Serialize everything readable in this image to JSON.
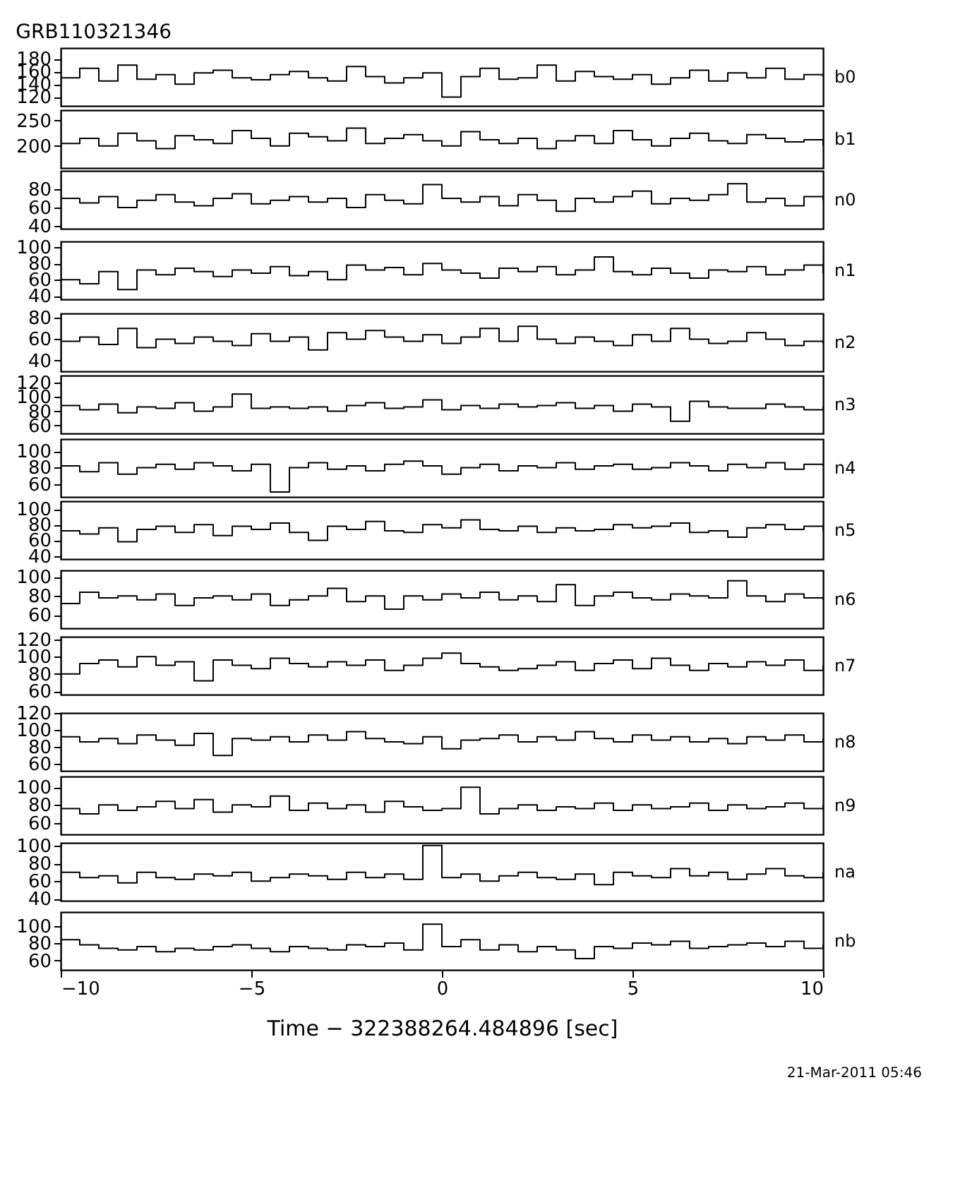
{
  "chart_data": [
    {
      "type": "step",
      "title": "GRB110321346",
      "x": [
        -10,
        -9.5,
        -9,
        -8.5,
        -8,
        -7.5,
        -7,
        -6.5,
        -6,
        -5.5,
        -5,
        -4.5,
        -4,
        -3.5,
        -3,
        -2.5,
        -2,
        -1.5,
        -1,
        -0.5,
        0,
        0.5,
        1,
        1.5,
        2,
        2.5,
        3,
        3.5,
        4,
        4.5,
        5,
        5.5,
        6,
        6.5,
        7,
        7.5,
        8,
        8.5,
        9,
        9.5,
        10
      ],
      "xlim": [
        -10,
        10
      ],
      "xticks": [
        -10,
        -5,
        0,
        5,
        10
      ],
      "ylim": [
        106,
        197
      ],
      "yticks": [
        120,
        140,
        160,
        180
      ],
      "tick_labels": "y",
      "grid": false,
      "line_style": "solid",
      "series": [
        {
          "name": "b0",
          "color": "#000000",
          "values": [
            150,
            165,
            145,
            170,
            148,
            155,
            140,
            158,
            162,
            150,
            147,
            155,
            160,
            150,
            145,
            168,
            152,
            142,
            150,
            158,
            120,
            152,
            165,
            148,
            150,
            170,
            145,
            160,
            152,
            148,
            155,
            140,
            150,
            162,
            145,
            158,
            150,
            165,
            148,
            155,
            152
          ]
        }
      ]
    },
    {
      "type": "step",
      "x": [
        -10,
        -9.5,
        -9,
        -8.5,
        -8,
        -7.5,
        -7,
        -6.5,
        -6,
        -5.5,
        -5,
        -4.5,
        -4,
        -3.5,
        -3,
        -2.5,
        -2,
        -1.5,
        -1,
        -0.5,
        0,
        0.5,
        1,
        1.5,
        2,
        2.5,
        3,
        3.5,
        4,
        4.5,
        5,
        5.5,
        6,
        6.5,
        7,
        7.5,
        8,
        8.5,
        9,
        9.5,
        10
      ],
      "xlim": [
        -10,
        10
      ],
      "xticks": [
        -10,
        -5,
        0,
        5,
        10
      ],
      "ylim": [
        157,
        270
      ],
      "yticks": [
        200,
        250
      ],
      "tick_labels": "y",
      "grid": false,
      "line_style": "solid",
      "series": [
        {
          "name": "b1",
          "color": "#000000",
          "values": [
            205,
            215,
            200,
            225,
            210,
            195,
            220,
            212,
            205,
            230,
            215,
            200,
            225,
            218,
            210,
            235,
            205,
            215,
            222,
            210,
            200,
            228,
            212,
            205,
            215,
            195,
            210,
            220,
            205,
            230,
            212,
            200,
            215,
            225,
            210,
            205,
            222,
            215,
            208,
            212,
            200
          ]
        }
      ]
    },
    {
      "type": "step",
      "x": [
        -10,
        -9.5,
        -9,
        -8.5,
        -8,
        -7.5,
        -7,
        -6.5,
        -6,
        -5.5,
        -5,
        -4.5,
        -4,
        -3.5,
        -3,
        -2.5,
        -2,
        -1.5,
        -1,
        -0.5,
        0,
        0.5,
        1,
        1.5,
        2,
        2.5,
        3,
        3.5,
        4,
        4.5,
        5,
        5.5,
        6,
        6.5,
        7,
        7.5,
        8,
        8.5,
        9,
        9.5,
        10
      ],
      "xlim": [
        -10,
        10
      ],
      "xticks": [
        -10,
        -5,
        0,
        5,
        10
      ],
      "ylim": [
        37,
        100
      ],
      "yticks": [
        40,
        60,
        80
      ],
      "tick_labels": "y",
      "grid": false,
      "line_style": "solid",
      "series": [
        {
          "name": "n0",
          "color": "#000000",
          "values": [
            70,
            65,
            72,
            60,
            68,
            74,
            66,
            62,
            70,
            75,
            64,
            68,
            72,
            66,
            70,
            60,
            74,
            68,
            64,
            85,
            70,
            66,
            72,
            62,
            74,
            68,
            56,
            70,
            66,
            72,
            78,
            64,
            70,
            68,
            74,
            86,
            66,
            70,
            62,
            72,
            68
          ]
        }
      ]
    },
    {
      "type": "step",
      "x": [
        -10,
        -9.5,
        -9,
        -8.5,
        -8,
        -7.5,
        -7,
        -6.5,
        -6,
        -5.5,
        -5,
        -4.5,
        -4,
        -3.5,
        -3,
        -2.5,
        -2,
        -1.5,
        -1,
        -0.5,
        0,
        0.5,
        1,
        1.5,
        2,
        2.5,
        3,
        3.5,
        4,
        4.5,
        5,
        5.5,
        6,
        6.5,
        7,
        7.5,
        8,
        8.5,
        9,
        9.5,
        10
      ],
      "xlim": [
        -10,
        10
      ],
      "xticks": [
        -10,
        -5,
        0,
        5,
        10
      ],
      "ylim": [
        36,
        107
      ],
      "yticks": [
        40,
        60,
        80,
        100
      ],
      "tick_labels": "y",
      "grid": false,
      "line_style": "solid",
      "series": [
        {
          "name": "n1",
          "color": "#000000",
          "values": [
            60,
            55,
            70,
            48,
            72,
            66,
            74,
            70,
            64,
            72,
            68,
            76,
            65,
            70,
            60,
            78,
            72,
            75,
            66,
            80,
            72,
            68,
            62,
            74,
            70,
            76,
            66,
            72,
            88,
            70,
            66,
            74,
            68,
            62,
            72,
            70,
            76,
            66,
            72,
            78,
            68
          ]
        }
      ]
    },
    {
      "type": "step",
      "x": [
        -10,
        -9.5,
        -9,
        -8.5,
        -8,
        -7.5,
        -7,
        -6.5,
        -6,
        -5.5,
        -5,
        -4.5,
        -4,
        -3.5,
        -3,
        -2.5,
        -2,
        -1.5,
        -1,
        -0.5,
        0,
        0.5,
        1,
        1.5,
        2,
        2.5,
        3,
        3.5,
        4,
        4.5,
        5,
        5.5,
        6,
        6.5,
        7,
        7.5,
        8,
        8.5,
        9,
        9.5,
        10
      ],
      "xlim": [
        -10,
        10
      ],
      "xticks": [
        -10,
        -5,
        0,
        5,
        10
      ],
      "ylim": [
        30,
        84
      ],
      "yticks": [
        40,
        60,
        80
      ],
      "tick_labels": "y",
      "grid": false,
      "line_style": "solid",
      "series": [
        {
          "name": "n2",
          "color": "#000000",
          "values": [
            58,
            62,
            55,
            70,
            52,
            60,
            56,
            62,
            58,
            54,
            65,
            58,
            62,
            50,
            66,
            60,
            68,
            62,
            58,
            64,
            56,
            62,
            70,
            58,
            72,
            60,
            56,
            62,
            58,
            54,
            64,
            58,
            70,
            60,
            56,
            58,
            66,
            60,
            54,
            58,
            56
          ]
        }
      ]
    },
    {
      "type": "step",
      "x": [
        -10,
        -9.5,
        -9,
        -8.5,
        -8,
        -7.5,
        -7,
        -6.5,
        -6,
        -5.5,
        -5,
        -4.5,
        -4,
        -3.5,
        -3,
        -2.5,
        -2,
        -1.5,
        -1,
        -0.5,
        0,
        0.5,
        1,
        1.5,
        2,
        2.5,
        3,
        3.5,
        4,
        4.5,
        5,
        5.5,
        6,
        6.5,
        7,
        7.5,
        8,
        8.5,
        9,
        9.5,
        10
      ],
      "xlim": [
        -10,
        10
      ],
      "xticks": [
        -10,
        -5,
        0,
        5,
        10
      ],
      "ylim": [
        49,
        130
      ],
      "yticks": [
        60,
        80,
        100,
        120
      ],
      "tick_labels": "y",
      "grid": false,
      "line_style": "solid",
      "series": [
        {
          "name": "n3",
          "color": "#000000",
          "values": [
            88,
            82,
            90,
            78,
            86,
            84,
            92,
            80,
            86,
            104,
            84,
            86,
            84,
            86,
            80,
            88,
            92,
            84,
            86,
            96,
            82,
            88,
            84,
            90,
            86,
            88,
            92,
            84,
            88,
            80,
            90,
            86,
            66,
            94,
            86,
            84,
            84,
            90,
            86,
            82,
            86
          ]
        }
      ]
    },
    {
      "type": "step",
      "x": [
        -10,
        -9.5,
        -9,
        -8.5,
        -8,
        -7.5,
        -7,
        -6.5,
        -6,
        -5.5,
        -5,
        -4.5,
        -4,
        -3.5,
        -3,
        -2.5,
        -2,
        -1.5,
        -1,
        -0.5,
        0,
        0.5,
        1,
        1.5,
        2,
        2.5,
        3,
        3.5,
        4,
        4.5,
        5,
        5.5,
        6,
        6.5,
        7,
        7.5,
        8,
        8.5,
        9,
        9.5,
        10
      ],
      "xlim": [
        -10,
        10
      ],
      "xticks": [
        -10,
        -5,
        0,
        5,
        10
      ],
      "ylim": [
        44,
        115
      ],
      "yticks": [
        60,
        80,
        100
      ],
      "tick_labels": "y",
      "grid": false,
      "line_style": "solid",
      "series": [
        {
          "name": "n4",
          "color": "#000000",
          "values": [
            82,
            75,
            86,
            72,
            80,
            84,
            78,
            86,
            82,
            76,
            84,
            50,
            80,
            86,
            78,
            82,
            76,
            84,
            88,
            82,
            72,
            80,
            84,
            76,
            82,
            80,
            86,
            78,
            82,
            84,
            78,
            80,
            86,
            82,
            76,
            84,
            80,
            86,
            78,
            84,
            82
          ]
        }
      ]
    },
    {
      "type": "step",
      "x": [
        -10,
        -9.5,
        -9,
        -8.5,
        -8,
        -7.5,
        -7,
        -6.5,
        -6,
        -5.5,
        -5,
        -4.5,
        -4,
        -3.5,
        -3,
        -2.5,
        -2,
        -1.5,
        -1,
        -0.5,
        0,
        0.5,
        1,
        1.5,
        2,
        2.5,
        3,
        3.5,
        4,
        4.5,
        5,
        5.5,
        6,
        6.5,
        7,
        7.5,
        8,
        8.5,
        9,
        9.5,
        10
      ],
      "xlim": [
        -10,
        10
      ],
      "xticks": [
        -10,
        -5,
        0,
        5,
        10
      ],
      "ylim": [
        36,
        110
      ],
      "yticks": [
        40,
        60,
        80,
        100
      ],
      "tick_labels": "y",
      "grid": false,
      "line_style": "solid",
      "series": [
        {
          "name": "n5",
          "color": "#000000",
          "values": [
            72,
            68,
            76,
            58,
            74,
            78,
            70,
            80,
            66,
            78,
            74,
            82,
            70,
            60,
            78,
            74,
            84,
            72,
            70,
            80,
            76,
            86,
            74,
            72,
            78,
            70,
            76,
            72,
            74,
            80,
            76,
            78,
            82,
            70,
            72,
            64,
            76,
            80,
            74,
            78,
            72
          ]
        }
      ]
    },
    {
      "type": "step",
      "x": [
        -10,
        -9.5,
        -9,
        -8.5,
        -8,
        -7.5,
        -7,
        -6.5,
        -6,
        -5.5,
        -5,
        -4.5,
        -4,
        -3.5,
        -3,
        -2.5,
        -2,
        -1.5,
        -1,
        -0.5,
        0,
        0.5,
        1,
        1.5,
        2,
        2.5,
        3,
        3.5,
        4,
        4.5,
        5,
        5.5,
        6,
        6.5,
        7,
        7.5,
        8,
        8.5,
        9,
        9.5,
        10
      ],
      "xlim": [
        -10,
        10
      ],
      "xticks": [
        -10,
        -5,
        0,
        5,
        10
      ],
      "ylim": [
        46,
        107
      ],
      "yticks": [
        60,
        80,
        100
      ],
      "tick_labels": "y",
      "grid": false,
      "line_style": "solid",
      "series": [
        {
          "name": "n6",
          "color": "#000000",
          "values": [
            72,
            84,
            78,
            80,
            76,
            82,
            70,
            78,
            80,
            76,
            82,
            70,
            76,
            80,
            88,
            74,
            80,
            66,
            80,
            76,
            82,
            78,
            84,
            76,
            80,
            74,
            92,
            70,
            80,
            84,
            78,
            76,
            82,
            80,
            78,
            96,
            80,
            74,
            82,
            78,
            76
          ]
        }
      ]
    },
    {
      "type": "step",
      "x": [
        -10,
        -9.5,
        -9,
        -8.5,
        -8,
        -7.5,
        -7,
        -6.5,
        -6,
        -5.5,
        -5,
        -4.5,
        -4,
        -3.5,
        -3,
        -2.5,
        -2,
        -1.5,
        -1,
        -0.5,
        0,
        0.5,
        1,
        1.5,
        2,
        2.5,
        3,
        3.5,
        4,
        4.5,
        5,
        5.5,
        6,
        6.5,
        7,
        7.5,
        8,
        8.5,
        9,
        9.5,
        10
      ],
      "xlim": [
        -10,
        10
      ],
      "xticks": [
        -10,
        -5,
        0,
        5,
        10
      ],
      "ylim": [
        56,
        123
      ],
      "yticks": [
        60,
        80,
        100,
        120
      ],
      "tick_labels": "y",
      "grid": false,
      "line_style": "solid",
      "series": [
        {
          "name": "n7",
          "color": "#000000",
          "values": [
            80,
            92,
            96,
            88,
            100,
            90,
            94,
            72,
            96,
            90,
            86,
            98,
            92,
            88,
            94,
            90,
            96,
            84,
            90,
            98,
            104,
            92,
            88,
            84,
            86,
            90,
            94,
            84,
            92,
            96,
            86,
            98,
            90,
            84,
            92,
            88,
            94,
            90,
            96,
            84,
            90
          ]
        }
      ]
    },
    {
      "type": "step",
      "x": [
        -10,
        -9.5,
        -9,
        -8.5,
        -8,
        -7.5,
        -7,
        -6.5,
        -6,
        -5.5,
        -5,
        -4.5,
        -4,
        -3.5,
        -3,
        -2.5,
        -2,
        -1.5,
        -1,
        -0.5,
        0,
        0.5,
        1,
        1.5,
        2,
        2.5,
        3,
        3.5,
        4,
        4.5,
        5,
        5.5,
        6,
        6.5,
        7,
        7.5,
        8,
        8.5,
        9,
        9.5,
        10
      ],
      "xlim": [
        -10,
        10
      ],
      "xticks": [
        -10,
        -5,
        0,
        5,
        10
      ],
      "ylim": [
        52,
        120
      ],
      "yticks": [
        60,
        80,
        100,
        120
      ],
      "tick_labels": "y",
      "grid": false,
      "line_style": "solid",
      "series": [
        {
          "name": "n8",
          "color": "#000000",
          "values": [
            92,
            86,
            90,
            84,
            94,
            88,
            82,
            96,
            70,
            90,
            88,
            92,
            86,
            94,
            88,
            98,
            90,
            86,
            84,
            92,
            78,
            88,
            90,
            94,
            86,
            92,
            88,
            98,
            90,
            86,
            94,
            88,
            92,
            86,
            90,
            84,
            92,
            88,
            94,
            86,
            90
          ]
        }
      ]
    },
    {
      "type": "step",
      "x": [
        -10,
        -9.5,
        -9,
        -8.5,
        -8,
        -7.5,
        -7,
        -6.5,
        -6,
        -5.5,
        -5,
        -4.5,
        -4,
        -3.5,
        -3,
        -2.5,
        -2,
        -1.5,
        -1,
        -0.5,
        0,
        0.5,
        1,
        1.5,
        2,
        2.5,
        3,
        3.5,
        4,
        4.5,
        5,
        5.5,
        6,
        6.5,
        7,
        7.5,
        8,
        8.5,
        9,
        9.5,
        10
      ],
      "xlim": [
        -10,
        10
      ],
      "xticks": [
        -10,
        -5,
        0,
        5,
        10
      ],
      "ylim": [
        47,
        112
      ],
      "yticks": [
        60,
        80,
        100
      ],
      "tick_labels": "y",
      "grid": false,
      "line_style": "solid",
      "series": [
        {
          "name": "n9",
          "color": "#000000",
          "values": [
            76,
            70,
            80,
            74,
            78,
            84,
            76,
            86,
            72,
            80,
            78,
            90,
            74,
            82,
            76,
            80,
            72,
            84,
            78,
            74,
            76,
            100,
            70,
            76,
            80,
            74,
            78,
            76,
            82,
            74,
            80,
            76,
            78,
            82,
            74,
            80,
            76,
            78,
            82,
            76,
            80
          ]
        }
      ]
    },
    {
      "type": "step",
      "x": [
        -10,
        -9.5,
        -9,
        -8.5,
        -8,
        -7.5,
        -7,
        -6.5,
        -6,
        -5.5,
        -5,
        -4.5,
        -4,
        -3.5,
        -3,
        -2.5,
        -2,
        -1.5,
        -1,
        -0.5,
        0,
        0.5,
        1,
        1.5,
        2,
        2.5,
        3,
        3.5,
        4,
        4.5,
        5,
        5.5,
        6,
        6.5,
        7,
        7.5,
        8,
        8.5,
        9,
        9.5,
        10
      ],
      "xlim": [
        -10,
        10
      ],
      "xticks": [
        -10,
        -5,
        0,
        5,
        10
      ],
      "ylim": [
        38,
        103
      ],
      "yticks": [
        40,
        60,
        80,
        100
      ],
      "tick_labels": "y",
      "grid": false,
      "line_style": "solid",
      "series": [
        {
          "name": "na",
          "color": "#000000",
          "values": [
            70,
            64,
            66,
            58,
            70,
            64,
            62,
            68,
            66,
            70,
            60,
            64,
            68,
            66,
            62,
            70,
            64,
            68,
            62,
            100,
            64,
            68,
            60,
            66,
            70,
            64,
            62,
            68,
            56,
            70,
            66,
            64,
            74,
            66,
            70,
            62,
            68,
            74,
            66,
            64,
            70
          ]
        }
      ]
    },
    {
      "type": "step",
      "xlabel": "Time − 322388264.484896 [sec]",
      "annotations": [
        "21-Mar-2011 05:46"
      ],
      "x": [
        -10,
        -9.5,
        -9,
        -8.5,
        -8,
        -7.5,
        -7,
        -6.5,
        -6,
        -5.5,
        -5,
        -4.5,
        -4,
        -3.5,
        -3,
        -2.5,
        -2,
        -1.5,
        -1,
        -0.5,
        0,
        0.5,
        1,
        1.5,
        2,
        2.5,
        3,
        3.5,
        4,
        4.5,
        5,
        5.5,
        6,
        6.5,
        7,
        7.5,
        8,
        8.5,
        9,
        9.5,
        10
      ],
      "xlim": [
        -10,
        10
      ],
      "xticks": [
        -10,
        -5,
        0,
        5,
        10
      ],
      "ylim": [
        49,
        116
      ],
      "yticks": [
        60,
        80,
        100
      ],
      "grid": false,
      "line_style": "solid",
      "series": [
        {
          "name": "nb",
          "color": "#000000",
          "values": [
            84,
            78,
            74,
            72,
            76,
            70,
            74,
            72,
            76,
            78,
            74,
            70,
            76,
            74,
            72,
            78,
            76,
            80,
            72,
            102,
            76,
            84,
            72,
            78,
            70,
            76,
            72,
            62,
            76,
            74,
            80,
            78,
            82,
            74,
            76,
            78,
            80,
            76,
            82,
            74,
            78
          ]
        }
      ]
    }
  ]
}
